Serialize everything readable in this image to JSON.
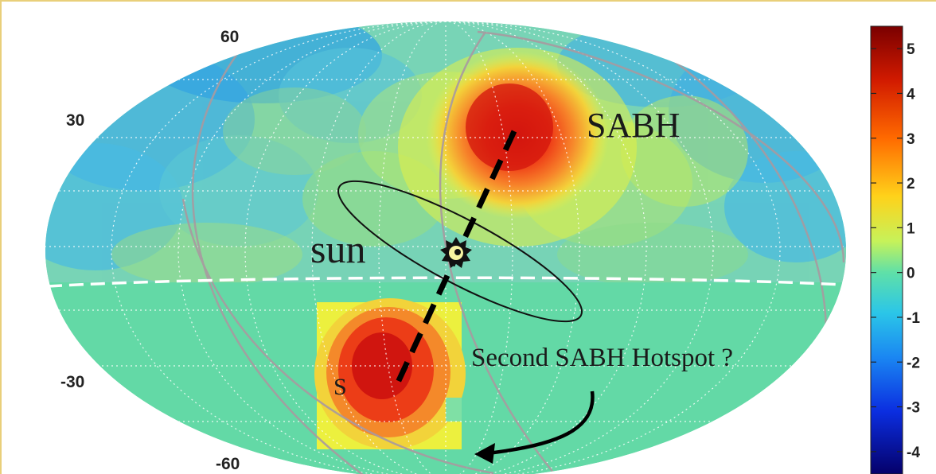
{
  "map": {
    "projection": "mollweide",
    "colormap": "jet",
    "latitude_labels": [
      "60",
      "30",
      "-30",
      "-60"
    ],
    "annotations": {
      "sabh": "SABH",
      "sun": "sun",
      "second_hotspot": "Second SABH Hotspot ?",
      "partial_glyph": "S"
    },
    "colors": {
      "background_field": "#63d9a6",
      "low_blue": "#3aa8ec",
      "hotspot_red": "#e8261c",
      "hotspot_yellow": "#f0ef3e"
    }
  },
  "colorbar": {
    "ticks": [
      "5",
      "4",
      "3",
      "2",
      "1",
      "0",
      "-1",
      "-2",
      "-3",
      "-4"
    ],
    "min": -4.5,
    "max": 5.5
  }
}
